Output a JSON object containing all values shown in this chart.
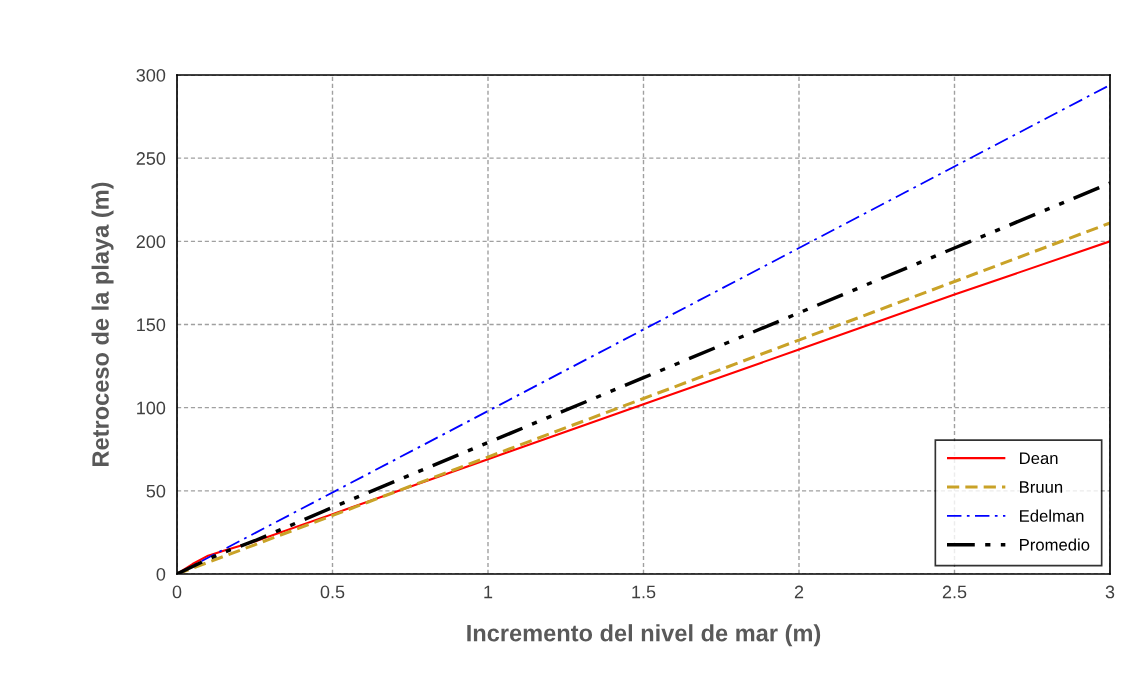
{
  "chart_data": {
    "type": "line",
    "xlabel": "Incremento del nivel de mar (m)",
    "ylabel": "Retroceso de la playa (m)",
    "xlim": [
      0,
      3
    ],
    "ylim": [
      0,
      300
    ],
    "xticks": [
      0,
      0.5,
      1,
      1.5,
      2,
      2.5,
      3
    ],
    "yticks": [
      0,
      50,
      100,
      150,
      200,
      250,
      300
    ],
    "grid": true,
    "legend": "bottom right",
    "marker": "none",
    "series": [
      {
        "name": "Dean",
        "color": "#ff0000",
        "line_style": "solid",
        "x": [
          0,
          0.05,
          0.1,
          0.15,
          0.25,
          0.5,
          1,
          1.5,
          2,
          2.5,
          3
        ],
        "values": [
          0,
          6,
          11,
          14,
          19.5,
          36,
          69,
          102,
          135,
          168,
          200
        ]
      },
      {
        "name": "Bruun",
        "color": "#c9a227",
        "line_style": "dashed",
        "x": [
          0,
          3
        ],
        "values": [
          0,
          211
        ]
      },
      {
        "name": "Edelman",
        "color": "#0000ff",
        "line_style": "dashdot",
        "x": [
          0,
          3
        ],
        "values": [
          0,
          294
        ]
      },
      {
        "name": "Promedio",
        "color": "#000000",
        "line_style": "dashdotdot",
        "x": [
          0,
          0.1,
          0.15,
          0.25,
          0.5,
          1,
          1.5,
          2,
          2.5,
          3
        ],
        "values": [
          0,
          9,
          13,
          20,
          40,
          79,
          118,
          157,
          196,
          235
        ]
      }
    ]
  }
}
